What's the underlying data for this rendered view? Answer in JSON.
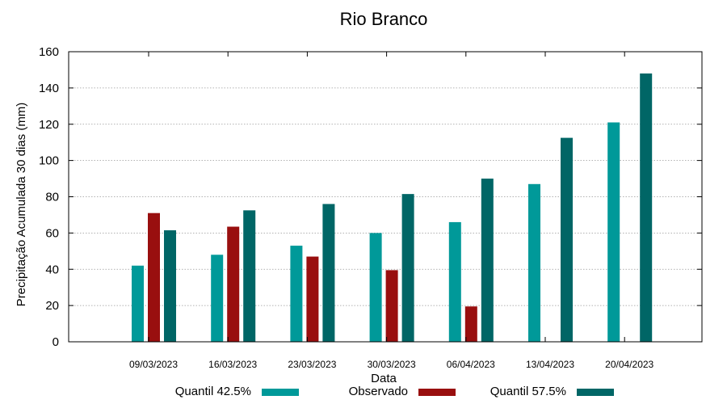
{
  "chart_data": {
    "type": "bar",
    "title": "Rio Branco",
    "xlabel": "Data",
    "ylabel": "Precipitação Acumulada 30 dias (mm)",
    "ylim": [
      0,
      160
    ],
    "yticks": [
      0,
      20,
      40,
      60,
      80,
      100,
      120,
      140,
      160
    ],
    "grid": "horizontal dotted",
    "legend_position": "bottom",
    "categories": [
      "09/03/2023",
      "16/03/2023",
      "23/03/2023",
      "30/03/2023",
      "06/04/2023",
      "13/04/2023",
      "20/04/2023"
    ],
    "series": [
      {
        "name": "Quantil 42.5%",
        "color": "#009999",
        "values": [
          42,
          48,
          53,
          60,
          66,
          87,
          121
        ]
      },
      {
        "name": "Observado",
        "color": "#990f0f",
        "values": [
          71,
          63.5,
          47,
          39.5,
          19.5,
          null,
          null
        ]
      },
      {
        "name": "Quantil 57.5%",
        "color": "#006666",
        "values": [
          61.5,
          72.5,
          76,
          81.5,
          90,
          112.5,
          148
        ]
      }
    ]
  }
}
